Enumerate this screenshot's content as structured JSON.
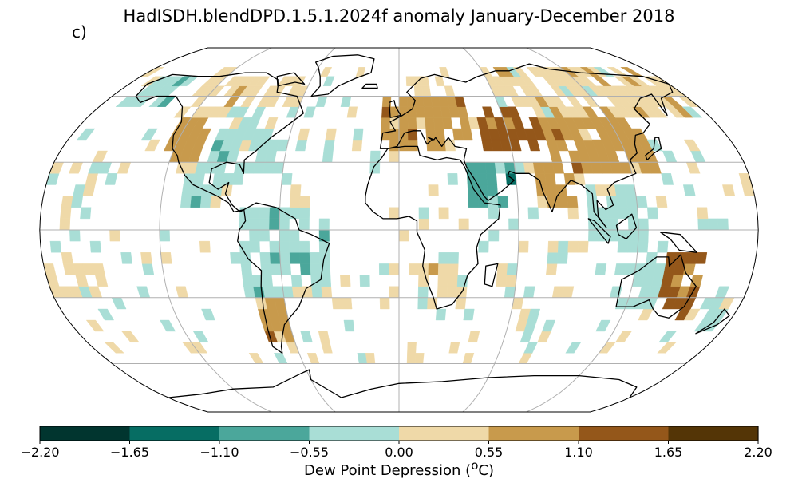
{
  "title": "HadISDH.blendDPD.1.5.1.2024f anomaly January-December 2018",
  "panel_label": "c)",
  "colorbar": {
    "label": "Dew Point Depression (",
    "label_sup": "o",
    "label_tail": "C)",
    "ticks": [
      "−2.20",
      "−1.65",
      "−1.10",
      "−0.55",
      "0.00",
      "0.55",
      "1.10",
      "1.65",
      "2.20"
    ],
    "colors": [
      "#01352f",
      "#066d63",
      "#4ba79b",
      "#a9ded6",
      "#efd9a8",
      "#c89a4c",
      "#94571a",
      "#543506"
    ]
  },
  "map": {
    "projection": "Robinson",
    "gridlines": true,
    "lat_lines": [
      -60,
      -30,
      0,
      30,
      60
    ],
    "lon_lines": [
      -120,
      -60,
      0,
      60,
      120
    ],
    "grid_resolution_deg": 5,
    "anomaly_regions": [
      {
        "region": "Eastern North America",
        "cat": 3
      },
      {
        "region": "Western United States",
        "cat": 5
      },
      {
        "region": "Southwest United States",
        "cat": 6
      },
      {
        "region": "Canada",
        "cat": 4
      },
      {
        "region": "Alaska",
        "cat": 3
      },
      {
        "region": "Mexico / Central America",
        "cat": 3
      },
      {
        "region": "South America",
        "cat": 3
      },
      {
        "region": "Southern South America",
        "cat": 5
      },
      {
        "region": "Europe",
        "cat": 5
      },
      {
        "region": "Scandinavia",
        "cat": 4
      },
      {
        "region": "Central Asia",
        "cat": 6
      },
      {
        "region": "Siberia",
        "cat": 4
      },
      {
        "region": "Eastern Asia",
        "cat": 5
      },
      {
        "region": "Arabian Peninsula",
        "cat": 2
      },
      {
        "region": "India",
        "cat": 5
      },
      {
        "region": "Southeast Asia",
        "cat": 3
      },
      {
        "region": "Southern Africa",
        "cat": 4
      },
      {
        "region": "Eastern Australia",
        "cat": 6
      },
      {
        "region": "Western Australia",
        "cat": 3
      },
      {
        "region": "New Zealand",
        "cat": 3
      },
      {
        "region": "Pacific Islands",
        "cat": 4
      }
    ]
  }
}
